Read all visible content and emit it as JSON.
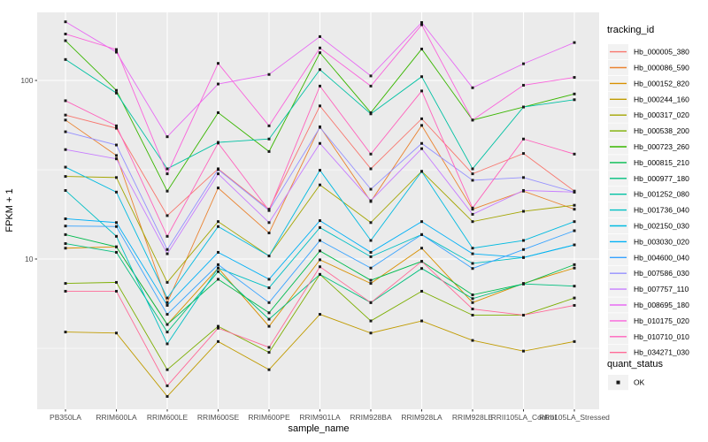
{
  "chart_data": {
    "type": "line",
    "title": "",
    "xlabel": "sample_name",
    "ylabel": "FPKM + 1",
    "y_scale": "log10",
    "ylim": [
      1.45,
      240
    ],
    "y_ticks": [
      100,
      10
    ],
    "y_minor_ticks": [
      31.6,
      3.16
    ],
    "grid": "major-and-minor-white-on-grey",
    "panel_bg": "#EBEBEB",
    "grid_color": "#FFFFFF",
    "axis_text_color": "#4D4D4D",
    "marker": "black-square",
    "legend_position": "right",
    "legend_title": "tracking_id",
    "legend2_title": "quant_status",
    "legend2_items": [
      "OK"
    ],
    "categories": [
      "PB350LA",
      "RRIM600LA",
      "RRIM600LE",
      "RRIM600SE",
      "RRIM600PE",
      "RRIM901LA",
      "RRIM928BA",
      "RRIM928LA",
      "RRIM928LE",
      "RRII105LA_Control",
      "RRII105LA_Stressed"
    ],
    "series": [
      {
        "name": "Hb_000005_380",
        "color": "#F8766D",
        "values": [
          64,
          54,
          17.5,
          32,
          19,
          72,
          32,
          61,
          30,
          39,
          24
        ]
      },
      {
        "name": "Hb_000086_590",
        "color": "#EA8331",
        "values": [
          60,
          38,
          5.7,
          25,
          14,
          55,
          21,
          56,
          19,
          24,
          19
        ]
      },
      {
        "name": "Hb_000152_820",
        "color": "#D89000",
        "values": [
          11.5,
          11.7,
          4.3,
          8.9,
          4.2,
          9.9,
          7.3,
          11.5,
          5.7,
          7.3,
          8.9
        ]
      },
      {
        "name": "Hb_000244_160",
        "color": "#C09B00",
        "values": [
          3.9,
          3.85,
          1.7,
          3.45,
          2.4,
          4.9,
          3.85,
          4.5,
          3.5,
          3.05,
          3.45
        ]
      },
      {
        "name": "Hb_000317_020",
        "color": "#A3A500",
        "values": [
          29,
          28.6,
          7.4,
          16.2,
          10.4,
          26,
          16,
          31,
          16.2,
          18.5,
          20
        ]
      },
      {
        "name": "Hb_000538_200",
        "color": "#7CAE00",
        "values": [
          7.3,
          7.4,
          2.4,
          4.2,
          3.0,
          8.2,
          4.5,
          6.6,
          4.85,
          4.85,
          6.05
        ]
      },
      {
        "name": "Hb_000723_260",
        "color": "#39B600",
        "values": [
          167,
          88,
          24,
          66,
          40,
          143,
          66,
          150,
          60,
          71,
          84
        ]
      },
      {
        "name": "Hb_000815_210",
        "color": "#00BB4E",
        "values": [
          13.7,
          11.7,
          4.3,
          7.7,
          5.0,
          11.1,
          7.6,
          9.7,
          6.3,
          7.25,
          9.3
        ]
      },
      {
        "name": "Hb_000977_180",
        "color": "#00BF7D",
        "values": [
          12.2,
          10.9,
          3.9,
          8.5,
          4.6,
          8.2,
          5.7,
          8.85,
          6.0,
          7.25,
          7.05
        ]
      },
      {
        "name": "Hb_001252_080",
        "color": "#00C1A3",
        "values": [
          131,
          85,
          32,
          45,
          47,
          115,
          65,
          105,
          32,
          71,
          78
        ]
      },
      {
        "name": "Hb_001736_040",
        "color": "#00BFC4",
        "values": [
          24.2,
          13.4,
          3.35,
          8.9,
          6.9,
          15,
          10.3,
          13.7,
          9.45,
          10.2,
          12
        ]
      },
      {
        "name": "Hb_002150_030",
        "color": "#00BAE0",
        "values": [
          32.7,
          23.7,
          6.05,
          15.2,
          10.4,
          31.4,
          12.7,
          30.9,
          11.5,
          12.7,
          16.2
        ]
      },
      {
        "name": "Hb_003030_020",
        "color": "#00B0F6",
        "values": [
          16.8,
          16,
          5.5,
          10.9,
          7.7,
          16.4,
          10.9,
          16.2,
          10.7,
          10.2,
          12
        ]
      },
      {
        "name": "Hb_004600_040",
        "color": "#35A2FF",
        "values": [
          15.3,
          15.2,
          4.9,
          9.3,
          5.7,
          12.7,
          8.9,
          13.7,
          8.85,
          11.3,
          14.4
        ]
      },
      {
        "name": "Hb_007586_030",
        "color": "#9590FF",
        "values": [
          51.6,
          43.5,
          11.3,
          31.7,
          18.7,
          54.6,
          24.6,
          44.4,
          27.6,
          28.6,
          23.7
        ]
      },
      {
        "name": "Hb_007757_110",
        "color": "#C77CFF",
        "values": [
          41,
          36.4,
          10.7,
          30,
          16,
          44.4,
          21.2,
          41.5,
          17.8,
          24.2,
          23.7
        ]
      },
      {
        "name": "Hb_008695_180",
        "color": "#E76BF3",
        "values": [
          213,
          144,
          48.4,
          95.5,
          108,
          176,
          106,
          211,
          91,
          124,
          163
        ]
      },
      {
        "name": "Hb_010175_020",
        "color": "#FA62DB",
        "values": [
          182,
          149,
          30,
          124.6,
          55.7,
          152,
          93,
          205,
          60,
          94,
          104
        ]
      },
      {
        "name": "Hb_010710_010",
        "color": "#FF62BC",
        "values": [
          77,
          55.7,
          13.4,
          44.6,
          18.7,
          93,
          38.7,
          87.3,
          19.3,
          47,
          38.7
        ]
      },
      {
        "name": "Hb_034271_030",
        "color": "#FF6A98",
        "values": [
          6.6,
          6.6,
          1.95,
          4.1,
          3.2,
          9.05,
          5.7,
          9.7,
          5.25,
          4.85,
          5.5
        ]
      }
    ]
  }
}
